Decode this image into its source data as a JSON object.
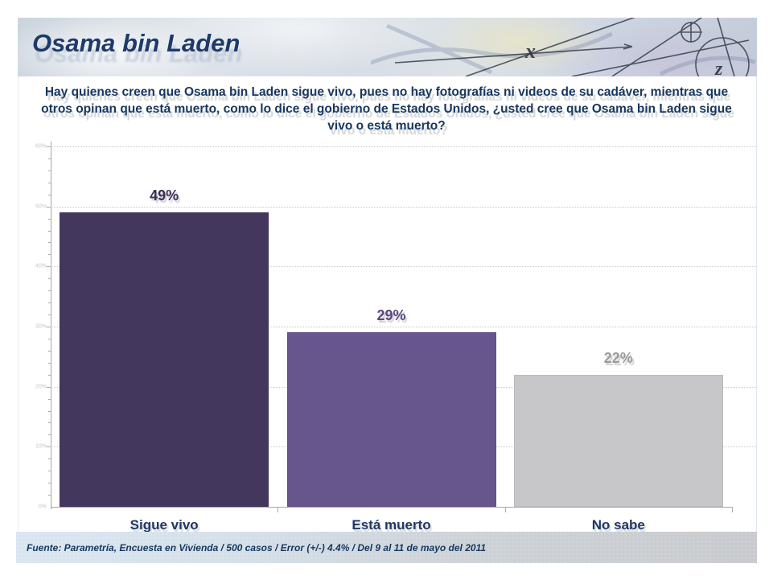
{
  "slide": {
    "title": "Osama bin Laden",
    "question": "Hay quienes creen que Osama bin Laden sigue vivo, pues no hay fotografías ni videos de su cadáver, mientras que otros opinan que está muerto, como lo dice el gobierno de Estados Unidos, ¿usted cree que Osama bin Laden sigue vivo o está muerto?",
    "source": "Fuente: Parametría, Encuesta en Vivienda / 500 casos / Error (+/-) 4.4% / Del 9 al 11 de mayo del 2011"
  },
  "colors": {
    "title_navy": "#1e3a6b",
    "question_navy": "#17375e",
    "category_navy": "#1f3864",
    "axis_gray": "#a6a6a6",
    "gridline_gray": "#c9cacc",
    "band_blue": "#d9e6f1",
    "band_gray": "#c8cacd"
  },
  "chart_data": {
    "type": "bar",
    "title": "",
    "xlabel": "",
    "ylabel": "",
    "categories": [
      "Sigue vivo",
      "Está muerto",
      "No sabe"
    ],
    "values": [
      49,
      29,
      22
    ],
    "value_labels": [
      "49%",
      "29%",
      "22%"
    ],
    "bar_colors": [
      "#44375e",
      "#67568e",
      "#c7c7c9"
    ],
    "label_colors": [
      "#3a2d56",
      "#5a4980",
      "#9c9c9e"
    ],
    "ylim": [
      0,
      60
    ],
    "ytick_step": 10,
    "ytick_labels": [
      "0%",
      "10%",
      "20%",
      "30%",
      "40%",
      "50%",
      "60%"
    ],
    "grid": "horizontal-dotted",
    "legend": "none"
  }
}
